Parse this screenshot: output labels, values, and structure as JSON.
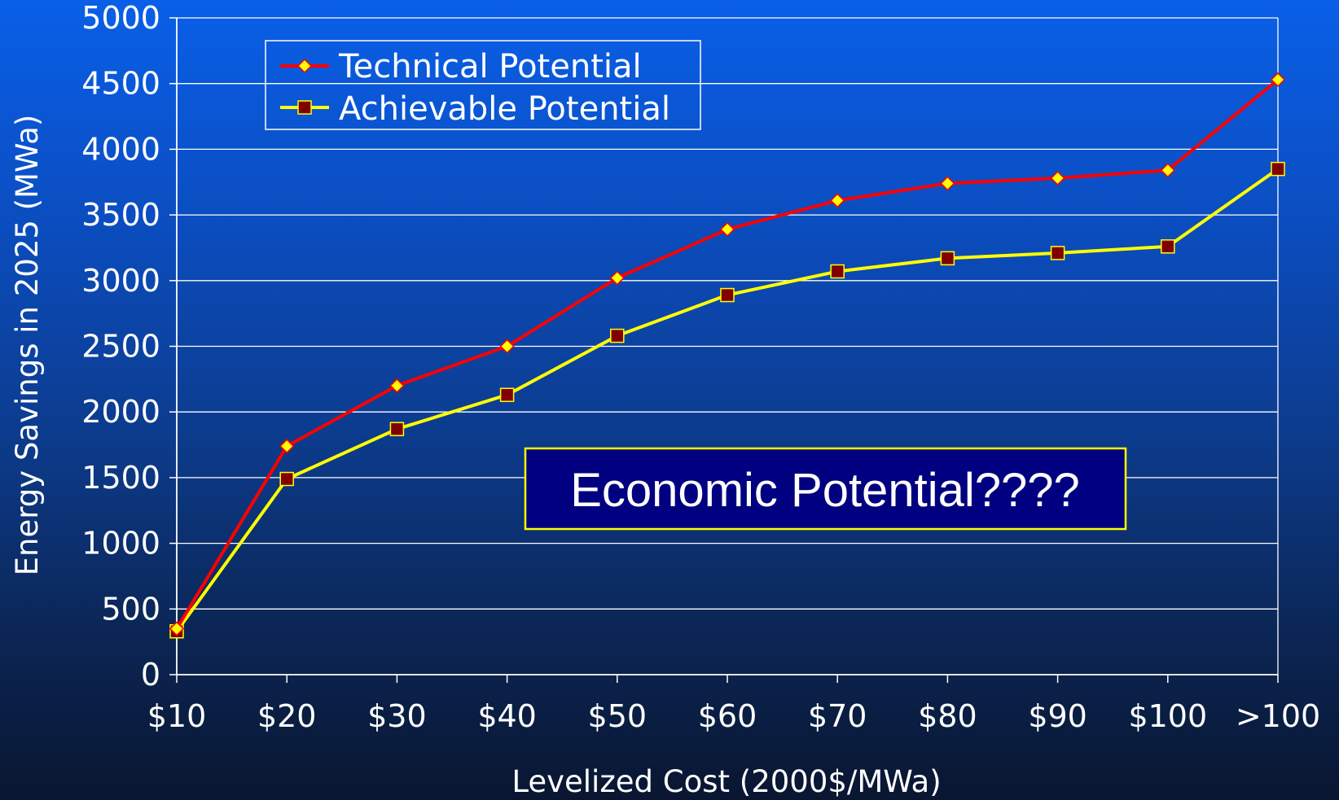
{
  "chart_data": {
    "type": "line",
    "title": "",
    "xlabel": "Levelized Cost (2000$/MWa)",
    "ylabel": "Energy Savings in 2025 (MWa)",
    "categories": [
      "$10",
      "$20",
      "$30",
      "$40",
      "$50",
      "$60",
      "$70",
      "$80",
      "$90",
      "$100",
      ">100"
    ],
    "ylim": [
      0,
      5000
    ],
    "yticks": [
      0,
      500,
      1000,
      1500,
      2000,
      2500,
      3000,
      3500,
      4000,
      4500,
      5000
    ],
    "grid": "horizontal",
    "legend_position": "top-left",
    "series": [
      {
        "name": "Technical Potential",
        "values": [
          350,
          1740,
          2200,
          2500,
          3020,
          3390,
          3610,
          3740,
          3780,
          3840,
          4530
        ],
        "color": "#ff0000",
        "marker": "diamond",
        "marker_color": "#ffff00"
      },
      {
        "name": "Achievable Potential",
        "values": [
          330,
          1490,
          1870,
          2130,
          2580,
          2890,
          3070,
          3170,
          3210,
          3260,
          3850
        ],
        "color": "#ffff00",
        "marker": "square",
        "marker_color": "#800000"
      }
    ],
    "annotations": [
      {
        "text": "Economic Potential????",
        "box_fill": "#000080",
        "box_border": "#ffff00"
      }
    ]
  }
}
